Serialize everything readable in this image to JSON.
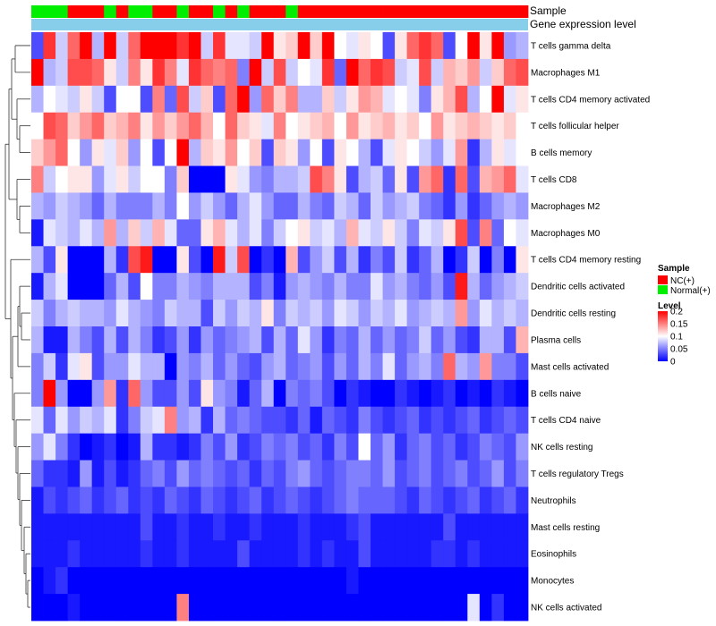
{
  "chart_data": {
    "type": "heatmap",
    "annotation_rows": [
      "Sample",
      "Gene expression level"
    ],
    "row_labels": [
      "T cells gamma delta",
      "Macrophages M1",
      "T cells CD4 memory activated",
      "T cells follicular helper",
      "B cells memory",
      "T cells CD8",
      "Macrophages M2",
      "Macrophages M0",
      "T cells CD4 memory resting",
      "Dendritic cells activated",
      "Dendritic cells resting",
      "Plasma cells",
      "Mast cells activated",
      "B cells naive",
      "T cells CD4 naive",
      "NK cells resting",
      "T cells regulatory  Tregs",
      "Neutrophils",
      "Mast cells resting",
      "Eosinophils",
      "Monocytes",
      "NK cells activated"
    ],
    "sample_groups": [
      "Normal(+)",
      "Normal(+)",
      "Normal(+)",
      "NC(+)",
      "NC(+)",
      "NC(+)",
      "Normal(+)",
      "NC(+)",
      "Normal(+)",
      "Normal(+)",
      "NC(+)",
      "NC(+)",
      "Normal(+)",
      "NC(+)",
      "NC(+)",
      "Normal(+)",
      "NC(+)",
      "Normal(+)",
      "NC(+)",
      "NC(+)",
      "NC(+)",
      "Normal(+)",
      "NC(+)",
      "NC(+)",
      "NC(+)",
      "NC(+)",
      "NC(+)",
      "NC(+)",
      "NC(+)",
      "NC(+)",
      "NC(+)",
      "NC(+)",
      "NC(+)",
      "NC(+)",
      "NC(+)",
      "NC(+)",
      "NC(+)",
      "NC(+)",
      "NC(+)",
      "NC(+)",
      "NC(+)"
    ],
    "legend_sample": {
      "title": "Sample",
      "items": [
        {
          "label": "NC(+)",
          "color": "#ff0000"
        },
        {
          "label": "Normal(+)",
          "color": "#00ee00"
        }
      ]
    },
    "legend_level": {
      "title": "Level",
      "ticks": [
        "0.2",
        "0.15",
        "0.1",
        "0.05",
        "0"
      ],
      "tick_values": [
        0.2,
        0.15,
        0.1,
        0.05,
        0
      ],
      "range": [
        0,
        0.2
      ],
      "colors": [
        "#0000ff",
        "#ffffff",
        "#ff0000"
      ]
    },
    "expression_bar_color": "#87ceeb",
    "values": [
      [
        0.03,
        0.18,
        0.08,
        0.16,
        0.2,
        0.07,
        0.2,
        0.08,
        0.16,
        0.2,
        0.2,
        0.2,
        0.18,
        0.2,
        0.08,
        0.18,
        0.09,
        0.09,
        0.08,
        0.2,
        0.11,
        0.12,
        0.2,
        0.12,
        0.2,
        0.1,
        0.09,
        0.11,
        0.1,
        0.03,
        0.11,
        0.16,
        0.18,
        0.16,
        0.03,
        0.1,
        0.2,
        0.11,
        0.2,
        0.06,
        0.07
      ],
      [
        0.2,
        0.07,
        0.08,
        0.17,
        0.17,
        0.16,
        0.11,
        0.08,
        0.15,
        0.11,
        0.18,
        0.15,
        0.09,
        0.18,
        0.16,
        0.15,
        0.16,
        0.05,
        0.2,
        0.08,
        0.17,
        0.08,
        0.1,
        0.09,
        0.18,
        0.04,
        0.2,
        0.16,
        0.18,
        0.17,
        0.08,
        0.09,
        0.17,
        0.08,
        0.13,
        0.12,
        0.14,
        0.08,
        0.12,
        0.16,
        0.17
      ],
      [
        0.07,
        0.1,
        0.09,
        0.08,
        0.11,
        0.08,
        0.03,
        0.1,
        0.1,
        0.03,
        0.15,
        0.04,
        0.17,
        0.08,
        0.12,
        0.03,
        0.16,
        0.2,
        0.06,
        0.16,
        0.12,
        0.15,
        0.07,
        0.07,
        0.12,
        0.08,
        0.11,
        0.14,
        0.13,
        0.09,
        0.1,
        0.09,
        0.05,
        0.11,
        0.13,
        0.17,
        0.07,
        0.1,
        0.2,
        0.09,
        0.11
      ],
      [
        0.1,
        0.17,
        0.16,
        0.12,
        0.14,
        0.16,
        0.12,
        0.13,
        0.15,
        0.11,
        0.14,
        0.12,
        0.14,
        0.16,
        0.13,
        0.1,
        0.16,
        0.12,
        0.11,
        0.09,
        0.15,
        0.1,
        0.11,
        0.12,
        0.13,
        0.1,
        0.14,
        0.11,
        0.12,
        0.13,
        0.11,
        0.12,
        0.1,
        0.14,
        0.11,
        0.12,
        0.13,
        0.12,
        0.11,
        0.12,
        0.1
      ],
      [
        0.12,
        0.14,
        0.16,
        0.1,
        0.06,
        0.11,
        0.09,
        0.12,
        0.06,
        0.1,
        0.03,
        0.1,
        0.2,
        0.07,
        0.12,
        0.11,
        0.14,
        0.1,
        0.12,
        0.03,
        0.12,
        0.11,
        0.06,
        0.1,
        0.03,
        0.11,
        0.1,
        0.07,
        0.03,
        0.09,
        0.11,
        0.1,
        0.08,
        0.06,
        0.09,
        0.14,
        0.02,
        0.07,
        0.11,
        0.09,
        0.1
      ],
      [
        0.15,
        0.08,
        0.1,
        0.11,
        0.11,
        0.06,
        0.09,
        0.11,
        0.08,
        0.1,
        0.1,
        0.05,
        0.12,
        0.0,
        0.0,
        0.0,
        0.11,
        0.09,
        0.06,
        0.05,
        0.07,
        0.07,
        0.08,
        0.17,
        0.15,
        0.11,
        0.03,
        0.07,
        0.08,
        0.04,
        0.11,
        0.03,
        0.14,
        0.16,
        0.02,
        0.16,
        0.03,
        0.13,
        0.14,
        0.16,
        0.09
      ],
      [
        0.07,
        0.06,
        0.08,
        0.07,
        0.06,
        0.04,
        0.07,
        0.05,
        0.05,
        0.05,
        0.07,
        0.05,
        0.1,
        0.06,
        0.08,
        0.06,
        0.04,
        0.07,
        0.09,
        0.06,
        0.04,
        0.04,
        0.07,
        0.05,
        0.04,
        0.08,
        0.07,
        0.04,
        0.08,
        0.06,
        0.07,
        0.08,
        0.05,
        0.04,
        0.02,
        0.06,
        0.02,
        0.04,
        0.06,
        0.07,
        0.06
      ],
      [
        0.01,
        0.09,
        0.08,
        0.07,
        0.09,
        0.07,
        0.14,
        0.07,
        0.12,
        0.08,
        0.13,
        0.09,
        0.04,
        0.04,
        0.11,
        0.13,
        0.09,
        0.07,
        0.09,
        0.05,
        0.08,
        0.1,
        0.11,
        0.08,
        0.09,
        0.07,
        0.13,
        0.09,
        0.08,
        0.11,
        0.08,
        0.05,
        0.09,
        0.08,
        0.11,
        0.17,
        0.03,
        0.15,
        0.04,
        0.1,
        0.09
      ],
      [
        0.07,
        0.03,
        0.11,
        0.0,
        0.0,
        0.0,
        0.07,
        0.02,
        0.17,
        0.19,
        0.0,
        0.0,
        0.11,
        0.03,
        0.0,
        0.19,
        0.08,
        0.17,
        0.0,
        0.02,
        0.0,
        0.13,
        0.03,
        0.06,
        0.08,
        0.03,
        0.07,
        0.02,
        0.05,
        0.03,
        0.08,
        0.02,
        0.04,
        0.07,
        0.0,
        0.02,
        0.08,
        0.0,
        0.05,
        0.0,
        0.11
      ],
      [
        0.01,
        0.07,
        0.09,
        0.0,
        0.0,
        0.0,
        0.04,
        0.07,
        0.03,
        0.1,
        0.05,
        0.05,
        0.07,
        0.06,
        0.05,
        0.07,
        0.07,
        0.07,
        0.03,
        0.05,
        0.01,
        0.06,
        0.07,
        0.06,
        0.05,
        0.07,
        0.05,
        0.05,
        0.09,
        0.06,
        0.07,
        0.05,
        0.04,
        0.06,
        0.03,
        0.19,
        0.07,
        0.04,
        0.06,
        0.07,
        0.08
      ],
      [
        0.08,
        0.05,
        0.07,
        0.08,
        0.07,
        0.07,
        0.06,
        0.09,
        0.07,
        0.06,
        0.05,
        0.08,
        0.07,
        0.07,
        0.03,
        0.08,
        0.06,
        0.08,
        0.07,
        0.11,
        0.05,
        0.08,
        0.07,
        0.08,
        0.06,
        0.09,
        0.08,
        0.06,
        0.08,
        0.07,
        0.09,
        0.06,
        0.07,
        0.08,
        0.07,
        0.14,
        0.06,
        0.09,
        0.07,
        0.08,
        0.07
      ],
      [
        0.07,
        0.01,
        0.01,
        0.07,
        0.05,
        0.03,
        0.07,
        0.03,
        0.07,
        0.05,
        0.02,
        0.03,
        0.06,
        0.02,
        0.06,
        0.04,
        0.05,
        0.06,
        0.07,
        0.03,
        0.07,
        0.04,
        0.09,
        0.06,
        0.02,
        0.05,
        0.04,
        0.07,
        0.04,
        0.06,
        0.04,
        0.05,
        0.08,
        0.04,
        0.06,
        0.03,
        0.02,
        0.07,
        0.07,
        0.03,
        0.13
      ],
      [
        0.05,
        0.08,
        0.02,
        0.09,
        0.11,
        0.03,
        0.06,
        0.06,
        0.09,
        0.07,
        0.07,
        0.0,
        0.06,
        0.05,
        0.07,
        0.04,
        0.06,
        0.04,
        0.03,
        0.06,
        0.07,
        0.04,
        0.05,
        0.06,
        0.03,
        0.06,
        0.04,
        0.07,
        0.05,
        0.09,
        0.04,
        0.06,
        0.07,
        0.05,
        0.16,
        0.07,
        0.06,
        0.14,
        0.05,
        0.05,
        0.03
      ],
      [
        0.05,
        0.2,
        0.06,
        0.0,
        0.0,
        0.06,
        0.14,
        0.02,
        0.16,
        0.06,
        0.03,
        0.03,
        0.06,
        0.03,
        0.11,
        0.06,
        0.05,
        0.01,
        0.04,
        0.07,
        0.0,
        0.05,
        0.04,
        0.05,
        0.03,
        0.0,
        0.02,
        0.01,
        0.0,
        0.0,
        0.02,
        0.01,
        0.0,
        0.01,
        0.02,
        0.0,
        0.01,
        0.0,
        0.02,
        0.01,
        0.0
      ],
      [
        0.09,
        0.04,
        0.09,
        0.06,
        0.08,
        0.07,
        0.09,
        0.02,
        0.05,
        0.08,
        0.09,
        0.15,
        0.06,
        0.07,
        0.02,
        0.07,
        0.04,
        0.05,
        0.04,
        0.03,
        0.03,
        0.02,
        0.04,
        0.01,
        0.04,
        0.03,
        0.02,
        0.05,
        0.03,
        0.02,
        0.03,
        0.04,
        0.02,
        0.03,
        0.02,
        0.03,
        0.04,
        0.02,
        0.03,
        0.04,
        0.03
      ],
      [
        0.06,
        0.09,
        0.05,
        0.02,
        0.0,
        0.01,
        0.02,
        0.0,
        0.01,
        0.07,
        0.02,
        0.02,
        0.01,
        0.02,
        0.05,
        0.03,
        0.06,
        0.02,
        0.03,
        0.05,
        0.04,
        0.05,
        0.03,
        0.04,
        0.02,
        0.05,
        0.03,
        0.1,
        0.04,
        0.06,
        0.02,
        0.04,
        0.05,
        0.03,
        0.04,
        0.02,
        0.03,
        0.05,
        0.04,
        0.03,
        0.06
      ],
      [
        0.04,
        0.02,
        0.02,
        0.01,
        0.06,
        0.01,
        0.03,
        0.01,
        0.02,
        0.04,
        0.05,
        0.03,
        0.06,
        0.04,
        0.05,
        0.04,
        0.03,
        0.04,
        0.02,
        0.04,
        0.03,
        0.05,
        0.06,
        0.04,
        0.03,
        0.04,
        0.05,
        0.05,
        0.04,
        0.06,
        0.03,
        0.04,
        0.05,
        0.03,
        0.04,
        0.05,
        0.03,
        0.04,
        0.06,
        0.03,
        0.05
      ],
      [
        0.01,
        0.03,
        0.02,
        0.03,
        0.04,
        0.02,
        0.03,
        0.04,
        0.02,
        0.03,
        0.02,
        0.04,
        0.03,
        0.02,
        0.04,
        0.03,
        0.02,
        0.03,
        0.04,
        0.02,
        0.03,
        0.04,
        0.03,
        0.02,
        0.03,
        0.04,
        0.05,
        0.04,
        0.04,
        0.04,
        0.03,
        0.02,
        0.04,
        0.03,
        0.02,
        0.03,
        0.04,
        0.02,
        0.03,
        0.04,
        0.02
      ],
      [
        0.01,
        0.01,
        0.01,
        0.01,
        0.01,
        0.01,
        0.01,
        0.01,
        0.01,
        0.03,
        0.01,
        0.01,
        0.02,
        0.01,
        0.01,
        0.02,
        0.01,
        0.01,
        0.02,
        0.01,
        0.01,
        0.01,
        0.02,
        0.01,
        0.01,
        0.01,
        0.02,
        0.03,
        0.01,
        0.01,
        0.01,
        0.01,
        0.01,
        0.01,
        0.03,
        0.01,
        0.01,
        0.01,
        0.01,
        0.01,
        0.01
      ],
      [
        0.01,
        0.01,
        0.01,
        0.02,
        0.01,
        0.01,
        0.01,
        0.01,
        0.01,
        0.02,
        0.01,
        0.01,
        0.02,
        0.01,
        0.01,
        0.01,
        0.01,
        0.03,
        0.01,
        0.01,
        0.01,
        0.01,
        0.02,
        0.01,
        0.02,
        0.01,
        0.01,
        0.03,
        0.01,
        0.01,
        0.01,
        0.01,
        0.01,
        0.02,
        0.02,
        0.01,
        0.02,
        0.01,
        0.01,
        0.01,
        0.01
      ],
      [
        0.0,
        0.01,
        0.02,
        0.0,
        0.0,
        0.0,
        0.0,
        0.0,
        0.0,
        0.0,
        0.0,
        0.0,
        0.0,
        0.0,
        0.0,
        0.0,
        0.0,
        0.0,
        0.0,
        0.0,
        0.0,
        0.0,
        0.0,
        0.0,
        0.0,
        0.0,
        0.01,
        0.0,
        0.0,
        0.0,
        0.0,
        0.0,
        0.0,
        0.0,
        0.0,
        0.0,
        0.0,
        0.0,
        0.0,
        0.0,
        0.0
      ],
      [
        0.0,
        0.0,
        0.0,
        0.01,
        0.0,
        0.0,
        0.0,
        0.0,
        0.0,
        0.0,
        0.0,
        0.0,
        0.15,
        0.0,
        0.0,
        0.0,
        0.0,
        0.0,
        0.0,
        0.0,
        0.0,
        0.0,
        0.0,
        0.0,
        0.0,
        0.0,
        0.0,
        0.0,
        0.0,
        0.0,
        0.0,
        0.0,
        0.0,
        0.0,
        0.0,
        0.0,
        0.09,
        0.0,
        0.02,
        0.0,
        0.0
      ]
    ]
  }
}
